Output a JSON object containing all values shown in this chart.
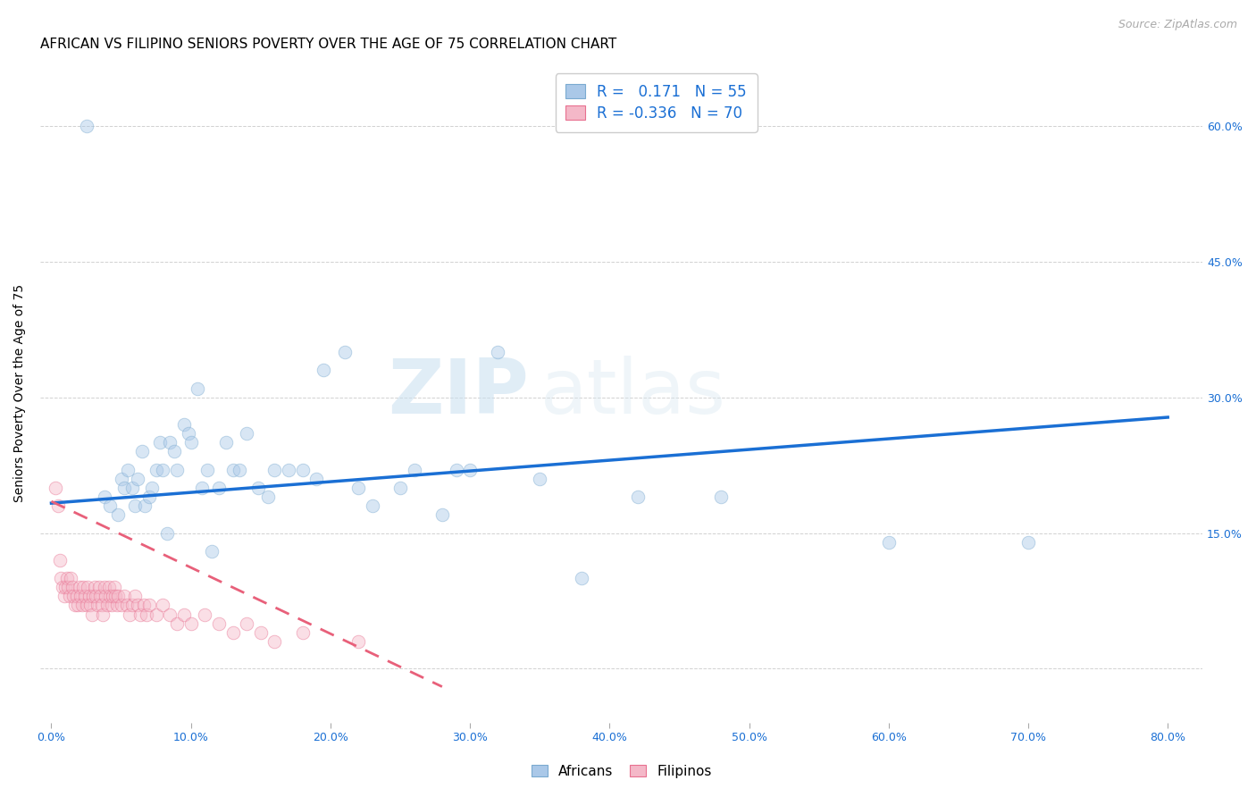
{
  "title": "AFRICAN VS FILIPINO SENIORS POVERTY OVER THE AGE OF 75 CORRELATION CHART",
  "source": "Source: ZipAtlas.com",
  "xlabel_ticks": [
    0.0,
    0.1,
    0.2,
    0.3,
    0.4,
    0.5,
    0.6,
    0.7,
    0.8
  ],
  "xlabel_labels": [
    "0.0%",
    "10.0%",
    "20.0%",
    "30.0%",
    "40.0%",
    "50.0%",
    "60.0%",
    "70.0%",
    "80.0%"
  ],
  "ylabel": "Seniors Poverty Over the Age of 75",
  "ytick_vals": [
    0.0,
    0.15,
    0.3,
    0.45,
    0.6
  ],
  "ytick_labels": [
    "",
    "15.0%",
    "30.0%",
    "45.0%",
    "60.0%"
  ],
  "xlim": [
    -0.008,
    0.825
  ],
  "ylim": [
    -0.06,
    0.67
  ],
  "watermark_zip": "ZIP",
  "watermark_atlas": "atlas",
  "african_color": "#aac8e8",
  "african_edge": "#7aaad0",
  "filipino_color": "#f4b8c8",
  "filipino_edge": "#e87090",
  "trend_african_color": "#1a6fd4",
  "trend_filipino_color": "#e8607a",
  "R_african": 0.171,
  "N_african": 55,
  "R_filipino": -0.336,
  "N_filipino": 70,
  "african_x": [
    0.025,
    0.038,
    0.042,
    0.048,
    0.05,
    0.052,
    0.055,
    0.058,
    0.06,
    0.062,
    0.065,
    0.067,
    0.07,
    0.072,
    0.075,
    0.078,
    0.08,
    0.083,
    0.085,
    0.088,
    0.09,
    0.095,
    0.098,
    0.1,
    0.105,
    0.108,
    0.112,
    0.115,
    0.12,
    0.125,
    0.13,
    0.135,
    0.14,
    0.148,
    0.155,
    0.16,
    0.17,
    0.18,
    0.19,
    0.195,
    0.21,
    0.22,
    0.23,
    0.25,
    0.26,
    0.28,
    0.29,
    0.3,
    0.32,
    0.35,
    0.38,
    0.42,
    0.48,
    0.6,
    0.7
  ],
  "african_y": [
    0.6,
    0.19,
    0.18,
    0.17,
    0.21,
    0.2,
    0.22,
    0.2,
    0.18,
    0.21,
    0.24,
    0.18,
    0.19,
    0.2,
    0.22,
    0.25,
    0.22,
    0.15,
    0.25,
    0.24,
    0.22,
    0.27,
    0.26,
    0.25,
    0.31,
    0.2,
    0.22,
    0.13,
    0.2,
    0.25,
    0.22,
    0.22,
    0.26,
    0.2,
    0.19,
    0.22,
    0.22,
    0.22,
    0.21,
    0.33,
    0.35,
    0.2,
    0.18,
    0.2,
    0.22,
    0.17,
    0.22,
    0.22,
    0.35,
    0.21,
    0.1,
    0.19,
    0.19,
    0.14,
    0.14
  ],
  "filipino_x": [
    0.003,
    0.005,
    0.006,
    0.007,
    0.008,
    0.009,
    0.01,
    0.011,
    0.012,
    0.013,
    0.014,
    0.015,
    0.016,
    0.017,
    0.018,
    0.019,
    0.02,
    0.021,
    0.022,
    0.023,
    0.024,
    0.025,
    0.026,
    0.027,
    0.028,
    0.029,
    0.03,
    0.031,
    0.032,
    0.033,
    0.034,
    0.035,
    0.036,
    0.037,
    0.038,
    0.039,
    0.04,
    0.041,
    0.042,
    0.043,
    0.044,
    0.045,
    0.046,
    0.047,
    0.048,
    0.05,
    0.052,
    0.054,
    0.056,
    0.058,
    0.06,
    0.062,
    0.064,
    0.066,
    0.068,
    0.07,
    0.075,
    0.08,
    0.085,
    0.09,
    0.095,
    0.1,
    0.11,
    0.12,
    0.13,
    0.14,
    0.15,
    0.16,
    0.18,
    0.22
  ],
  "filipino_y": [
    0.2,
    0.18,
    0.12,
    0.1,
    0.09,
    0.08,
    0.09,
    0.1,
    0.09,
    0.08,
    0.1,
    0.09,
    0.08,
    0.07,
    0.08,
    0.07,
    0.09,
    0.08,
    0.07,
    0.09,
    0.08,
    0.07,
    0.09,
    0.08,
    0.07,
    0.06,
    0.08,
    0.09,
    0.08,
    0.07,
    0.09,
    0.08,
    0.07,
    0.06,
    0.09,
    0.08,
    0.07,
    0.09,
    0.08,
    0.07,
    0.08,
    0.09,
    0.08,
    0.07,
    0.08,
    0.07,
    0.08,
    0.07,
    0.06,
    0.07,
    0.08,
    0.07,
    0.06,
    0.07,
    0.06,
    0.07,
    0.06,
    0.07,
    0.06,
    0.05,
    0.06,
    0.05,
    0.06,
    0.05,
    0.04,
    0.05,
    0.04,
    0.03,
    0.04,
    0.03
  ],
  "title_fontsize": 11,
  "axis_label_fontsize": 10,
  "tick_fontsize": 9,
  "legend_fontsize": 11,
  "source_fontsize": 9,
  "marker_size": 110,
  "alpha_scatter": 0.45,
  "trend_line_x_start_african": 0.0,
  "trend_line_x_end_african": 0.8,
  "trend_line_y_start_african": 0.183,
  "trend_line_y_end_african": 0.278,
  "trend_line_x_start_filipino": 0.0,
  "trend_line_x_end_filipino": 0.28,
  "trend_line_y_start_filipino": 0.185,
  "trend_line_y_end_filipino": -0.02
}
